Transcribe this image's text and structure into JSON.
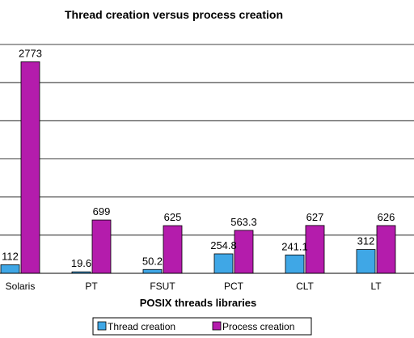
{
  "chart_data": {
    "type": "bar",
    "title": "Thread creation versus process creation",
    "xlabel": "POSIX threads libraries",
    "ylabel": "",
    "categories": [
      "Solaris",
      "PT",
      "FSUT",
      "PCT",
      "CLT",
      "LT"
    ],
    "series": [
      {
        "name": "Thread creation",
        "color": "#3fa7e6",
        "values": [
          112,
          19.6,
          50.2,
          254.8,
          241.1,
          312
        ],
        "labels": [
          "112",
          "19.6",
          "50.2",
          "254.8",
          "241.1",
          "312"
        ]
      },
      {
        "name": "Process creation",
        "color": "#b41cac",
        "values": [
          2773,
          699,
          625,
          563.3,
          627,
          626
        ],
        "labels": [
          "2773",
          "699",
          "625",
          "563.3",
          "627",
          "626"
        ]
      }
    ],
    "ylim": [
      0,
      3000
    ],
    "grid": true,
    "legend_position": "bottom-center"
  }
}
